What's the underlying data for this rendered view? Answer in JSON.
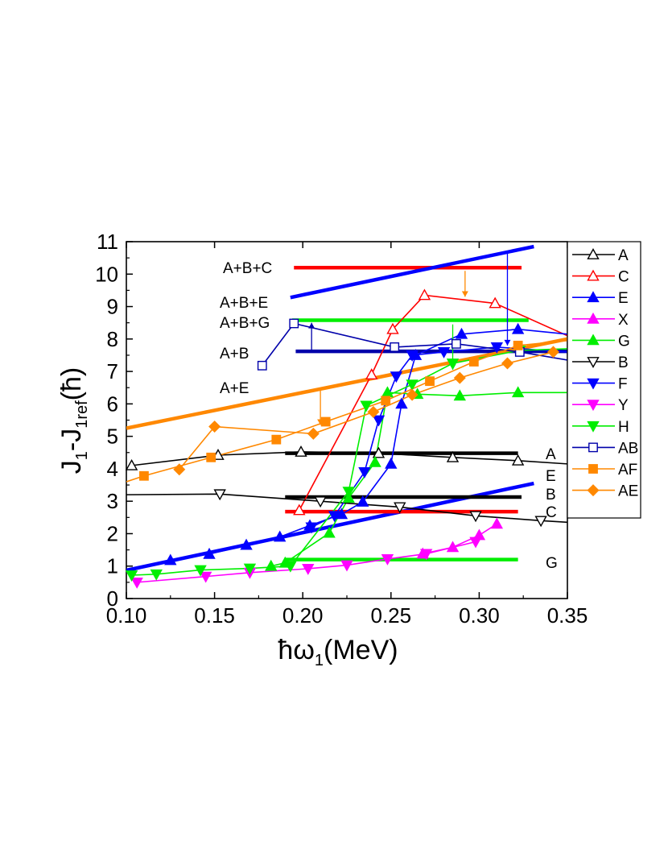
{
  "chart_data": {
    "type": "line",
    "xlabel": "ħω",
    "xlabel_sub": "1",
    "xlabel_unit": "(MeV)",
    "ylabel_parts": [
      "J",
      "1",
      "-J",
      "1ref",
      "(ħ)"
    ],
    "xlim": [
      0.1,
      0.35
    ],
    "ylim": [
      0,
      11
    ],
    "x_ticks": [
      "0.10",
      "0.15",
      "0.20",
      "0.25",
      "0.30",
      "0.35"
    ],
    "x_tick_values": [
      0.1,
      0.15,
      0.2,
      0.25,
      0.3,
      0.35
    ],
    "y_ticks": [
      "0",
      "1",
      "2",
      "3",
      "4",
      "5",
      "6",
      "7",
      "8",
      "9",
      "10",
      "11"
    ],
    "y_tick_values": [
      0,
      1,
      2,
      3,
      4,
      5,
      6,
      7,
      8,
      9,
      10,
      11
    ],
    "legend_position": "right",
    "series": [
      {
        "name": "A",
        "color": "#000000",
        "marker": "triangle-up-open",
        "points": [
          [
            0.103,
            4.1
          ],
          [
            0.152,
            4.42
          ],
          [
            0.199,
            4.52
          ],
          [
            0.243,
            4.48
          ],
          [
            0.285,
            4.35
          ],
          [
            0.322,
            4.25
          ],
          [
            0.35,
            4.15
          ]
        ]
      },
      {
        "name": "C",
        "color": "#ff0000",
        "marker": "triangle-up-open",
        "points": [
          [
            0.198,
            2.72
          ],
          [
            0.239,
            6.9
          ],
          [
            0.251,
            8.3
          ],
          [
            0.269,
            9.35
          ],
          [
            0.309,
            9.1
          ],
          [
            0.35,
            8.1
          ]
        ]
      },
      {
        "name": "E",
        "color": "#0000ff",
        "marker": "triangle-up-filled",
        "points": [
          [
            0.1,
            0.82
          ],
          [
            0.125,
            1.18
          ],
          [
            0.147,
            1.37
          ],
          [
            0.168,
            1.65
          ],
          [
            0.187,
            1.9
          ],
          [
            0.204,
            2.25
          ],
          [
            0.222,
            2.6
          ],
          [
            0.234,
            2.98
          ],
          [
            0.25,
            4.15
          ],
          [
            0.256,
            6.0
          ],
          [
            0.264,
            7.5
          ],
          [
            0.29,
            8.15
          ],
          [
            0.322,
            8.3
          ],
          [
            0.35,
            8.15
          ]
        ]
      },
      {
        "name": "X",
        "color": "#ff00ff",
        "marker": "triangle-up-filled",
        "points": [
          [
            0.268,
            1.38
          ],
          [
            0.285,
            1.58
          ],
          [
            0.3,
            1.95
          ],
          [
            0.31,
            2.3
          ]
        ]
      },
      {
        "name": "G",
        "color": "#00ee00",
        "marker": "triangle-up-filled",
        "points": [
          [
            0.182,
            1.0
          ],
          [
            0.19,
            1.1
          ],
          [
            0.215,
            2.02
          ],
          [
            0.226,
            3.1
          ],
          [
            0.241,
            4.2
          ],
          [
            0.248,
            6.35
          ],
          [
            0.265,
            6.3
          ],
          [
            0.289,
            6.25
          ],
          [
            0.322,
            6.35
          ],
          [
            0.35,
            6.35
          ]
        ]
      },
      {
        "name": "B",
        "color": "#000000",
        "marker": "triangle-down-open",
        "points": [
          [
            0.1,
            3.2
          ],
          [
            0.153,
            3.22
          ],
          [
            0.21,
            3.0
          ],
          [
            0.255,
            2.82
          ],
          [
            0.298,
            2.55
          ],
          [
            0.335,
            2.4
          ],
          [
            0.35,
            2.35
          ]
        ]
      },
      {
        "name": "F",
        "color": "#0000ff",
        "marker": "triangle-down-filled",
        "points": [
          [
            0.205,
            2.2
          ],
          [
            0.218,
            2.55
          ],
          [
            0.235,
            3.9
          ],
          [
            0.243,
            5.5
          ],
          [
            0.253,
            6.85
          ],
          [
            0.262,
            7.5
          ],
          [
            0.28,
            7.6
          ],
          [
            0.31,
            7.75
          ],
          [
            0.35,
            7.6
          ]
        ]
      },
      {
        "name": "Y",
        "color": "#ff00ff",
        "marker": "triangle-down-filled",
        "points": [
          [
            0.106,
            0.5
          ],
          [
            0.145,
            0.68
          ],
          [
            0.17,
            0.8
          ],
          [
            0.203,
            0.92
          ],
          [
            0.225,
            1.03
          ],
          [
            0.248,
            1.22
          ],
          [
            0.27,
            1.38
          ],
          [
            0.298,
            1.75
          ]
        ]
      },
      {
        "name": "H",
        "color": "#00ee00",
        "marker": "triangle-down-filled",
        "points": [
          [
            0.103,
            0.72
          ],
          [
            0.117,
            0.75
          ],
          [
            0.142,
            0.88
          ],
          [
            0.17,
            0.93
          ],
          [
            0.193,
            1.0
          ],
          [
            0.226,
            3.3
          ],
          [
            0.236,
            5.95
          ],
          [
            0.262,
            6.6
          ],
          [
            0.285,
            7.25
          ],
          [
            0.323,
            7.65
          ],
          [
            0.35,
            7.7
          ]
        ]
      },
      {
        "name": "AB",
        "color": "#0000aa",
        "marker": "square-open",
        "points": [
          [
            0.177,
            7.18
          ],
          [
            0.195,
            8.48
          ],
          [
            0.252,
            7.75
          ],
          [
            0.287,
            7.85
          ],
          [
            0.323,
            7.6
          ],
          [
            0.35,
            7.35
          ]
        ]
      },
      {
        "name": "AF",
        "color": "#ff8800",
        "marker": "square-filled",
        "points": [
          [
            0.1,
            3.6
          ],
          [
            0.11,
            3.78
          ],
          [
            0.148,
            4.35
          ],
          [
            0.185,
            4.9
          ],
          [
            0.213,
            5.45
          ],
          [
            0.247,
            6.1
          ],
          [
            0.272,
            6.7
          ],
          [
            0.297,
            7.3
          ],
          [
            0.322,
            7.8
          ],
          [
            0.35,
            7.95
          ]
        ]
      },
      {
        "name": "AE",
        "color": "#ff8800",
        "marker": "diamond-filled",
        "points": [
          [
            0.13,
            3.98
          ],
          [
            0.15,
            5.3
          ],
          [
            0.206,
            5.08
          ],
          [
            0.24,
            5.75
          ],
          [
            0.262,
            6.28
          ],
          [
            0.289,
            6.8
          ],
          [
            0.316,
            7.25
          ],
          [
            0.342,
            7.6
          ]
        ]
      }
    ],
    "reference_lines": [
      {
        "label": "A+B+C",
        "color": "#ff0000",
        "points": [
          [
            0.195,
            10.2
          ],
          [
            0.324,
            10.2
          ]
        ]
      },
      {
        "label": "A+B+E",
        "color": "#0000ff",
        "points": [
          [
            0.193,
            9.28
          ],
          [
            0.331,
            10.85
          ]
        ]
      },
      {
        "label": "A+B+G",
        "color": "#00ee00",
        "points": [
          [
            0.194,
            8.58
          ],
          [
            0.328,
            8.58
          ]
        ]
      },
      {
        "label": "A+B",
        "color": "#0000aa",
        "points": [
          [
            0.196,
            7.62
          ],
          [
            0.35,
            7.62
          ]
        ]
      },
      {
        "label": "A+E",
        "color": "#ff8800",
        "points": [
          [
            0.1,
            5.25
          ],
          [
            0.35,
            8.0
          ]
        ]
      },
      {
        "label": "A",
        "color": "#000000",
        "points": [
          [
            0.19,
            4.48
          ],
          [
            0.322,
            4.48
          ]
        ]
      },
      {
        "label": "E",
        "color": "#0000ff",
        "points": [
          [
            0.1,
            0.87
          ],
          [
            0.331,
            3.55
          ]
        ]
      },
      {
        "label": "B",
        "color": "#000000",
        "points": [
          [
            0.19,
            3.13
          ],
          [
            0.324,
            3.13
          ]
        ]
      },
      {
        "label": "C",
        "color": "#ff0000",
        "points": [
          [
            0.19,
            2.68
          ],
          [
            0.322,
            2.68
          ]
        ]
      },
      {
        "label": "G",
        "color": "#00ee00",
        "points": [
          [
            0.19,
            1.2
          ],
          [
            0.322,
            1.2
          ]
        ]
      }
    ],
    "annotation_arrows": [
      {
        "color": "#ff8800",
        "from": [
          0.292,
          10.1
        ],
        "to": [
          0.292,
          9.3
        ]
      },
      {
        "color": "#0000ff",
        "from": [
          0.316,
          10.65
        ],
        "to": [
          0.316,
          7.8
        ]
      },
      {
        "color": "#0000aa",
        "from": [
          0.205,
          7.6
        ],
        "to": [
          0.205,
          8.5
        ]
      },
      {
        "color": "#ff8800",
        "from": [
          0.21,
          6.45
        ],
        "to": [
          0.21,
          5.35
        ]
      },
      {
        "color": "#00ee00",
        "from": [
          0.285,
          8.45
        ],
        "to": [
          0.285,
          7.05
        ]
      }
    ]
  }
}
